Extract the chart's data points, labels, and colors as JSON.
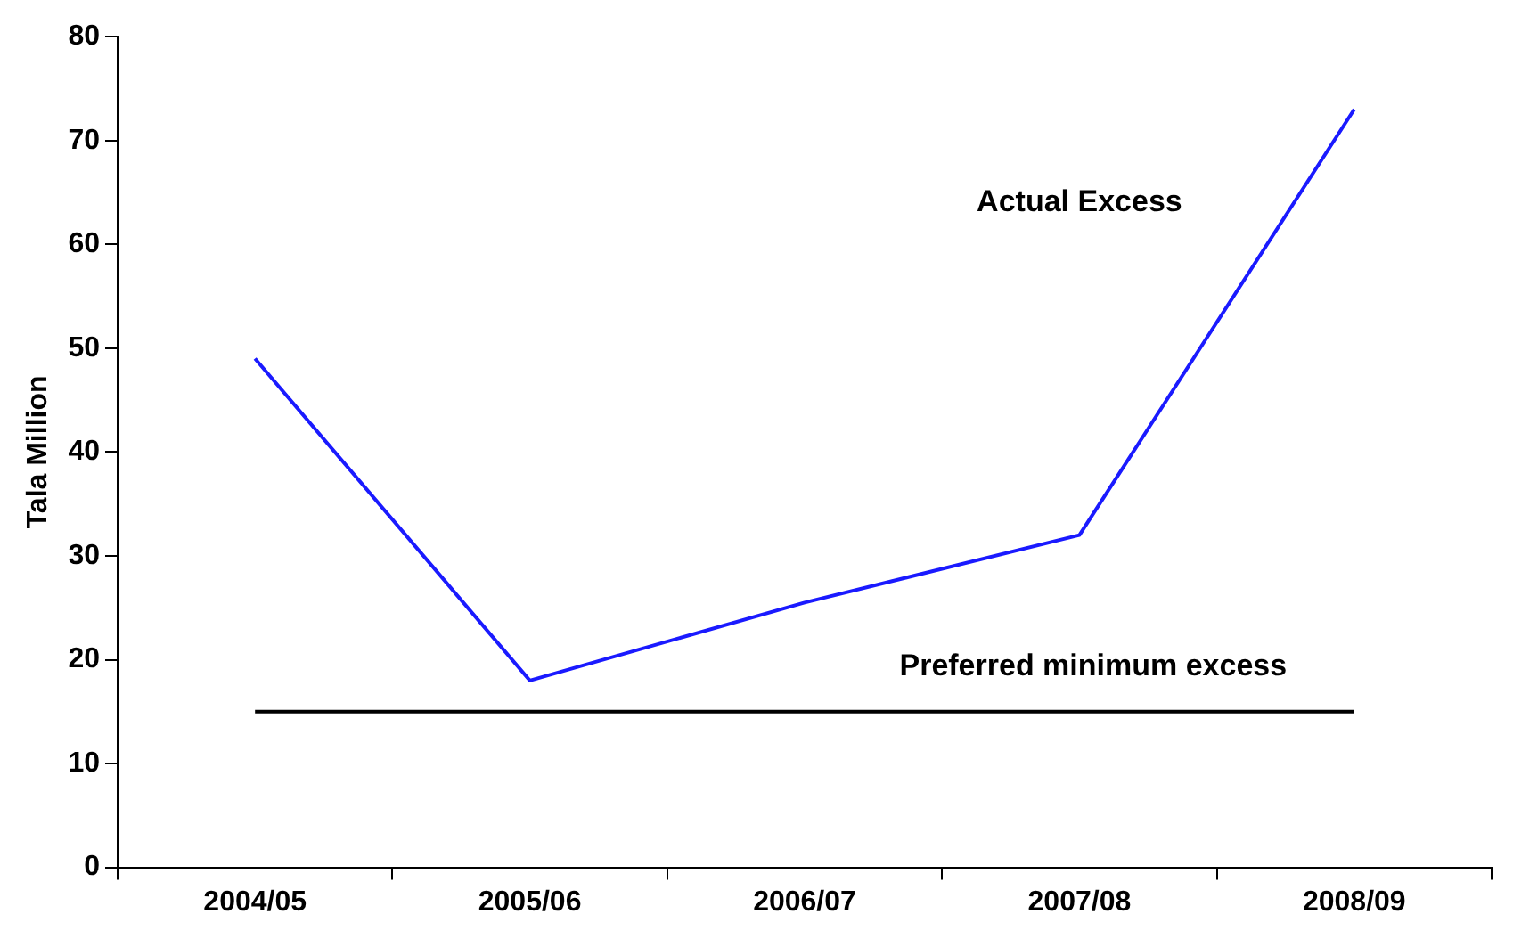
{
  "chart_data": {
    "type": "line",
    "ylabel": "Tala Million",
    "categories": [
      "2004/05",
      "2005/06",
      "2006/07",
      "2007/08",
      "2008/09"
    ],
    "series": [
      {
        "name": "Actual Excess",
        "color": "#1a1aff",
        "values": [
          49,
          18,
          25.5,
          32,
          73
        ]
      },
      {
        "name": "Preferred minimum excess",
        "color": "#000000",
        "values": [
          15,
          15,
          15,
          15,
          15
        ]
      }
    ],
    "ylim": [
      0,
      80
    ],
    "yticks": [
      0,
      10,
      20,
      30,
      40,
      50,
      60,
      70,
      80
    ],
    "grid": false,
    "legend": false,
    "marker": "none",
    "line_style": "solid"
  }
}
